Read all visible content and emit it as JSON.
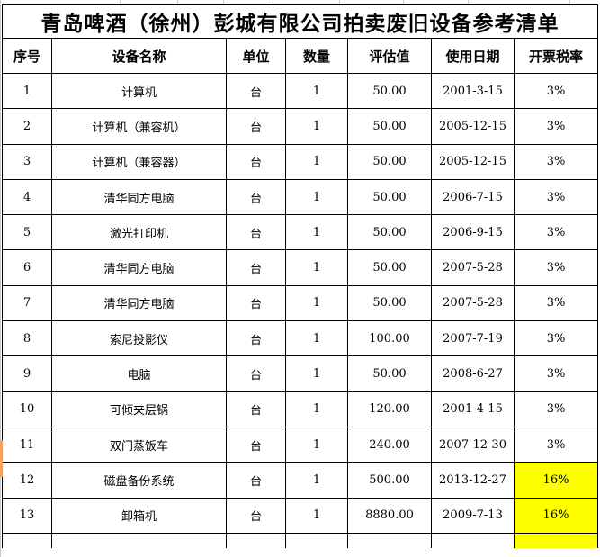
{
  "title": "青岛啤酒（徐州）彭城有限公司拍卖废旧设备参考清单",
  "table": {
    "columns": [
      "序号",
      "设备名称",
      "单位",
      "数量",
      "评估值",
      "使用日期",
      "开票税率"
    ],
    "rows": [
      {
        "no": "1",
        "name": "计算机",
        "unit": "台",
        "qty": "1",
        "value": "50.00",
        "date": "2001-3-15",
        "tax": "3%",
        "tax_highlight": false
      },
      {
        "no": "2",
        "name": "计算机（兼容机）",
        "unit": "台",
        "qty": "1",
        "value": "50.00",
        "date": "2005-12-15",
        "tax": "3%",
        "tax_highlight": false
      },
      {
        "no": "3",
        "name": "计算机（兼容器）",
        "unit": "台",
        "qty": "1",
        "value": "50.00",
        "date": "2005-12-15",
        "tax": "3%",
        "tax_highlight": false
      },
      {
        "no": "4",
        "name": "清华同方电脑",
        "unit": "台",
        "qty": "1",
        "value": "50.00",
        "date": "2006-7-15",
        "tax": "3%",
        "tax_highlight": false
      },
      {
        "no": "5",
        "name": "激光打印机",
        "unit": "台",
        "qty": "1",
        "value": "50.00",
        "date": "2006-9-15",
        "tax": "3%",
        "tax_highlight": false
      },
      {
        "no": "6",
        "name": "清华同方电脑",
        "unit": "台",
        "qty": "1",
        "value": "50.00",
        "date": "2007-5-28",
        "tax": "3%",
        "tax_highlight": false
      },
      {
        "no": "7",
        "name": "清华同方电脑",
        "unit": "台",
        "qty": "1",
        "value": "50.00",
        "date": "2007-5-28",
        "tax": "3%",
        "tax_highlight": false
      },
      {
        "no": "8",
        "name": "索尼投影仪",
        "unit": "台",
        "qty": "1",
        "value": "100.00",
        "date": "2007-7-19",
        "tax": "3%",
        "tax_highlight": false
      },
      {
        "no": "9",
        "name": "电脑",
        "unit": "台",
        "qty": "1",
        "value": "50.00",
        "date": "2008-6-27",
        "tax": "3%",
        "tax_highlight": false
      },
      {
        "no": "10",
        "name": "可倾夹层锅",
        "unit": "台",
        "qty": "1",
        "value": "120.00",
        "date": "2001-4-15",
        "tax": "3%",
        "tax_highlight": false
      },
      {
        "no": "11",
        "name": "双门蒸饭车",
        "unit": "台",
        "qty": "1",
        "value": "240.00",
        "date": "2007-12-30",
        "tax": "3%",
        "tax_highlight": false
      },
      {
        "no": "12",
        "name": "磁盘备份系统",
        "unit": "台",
        "qty": "1",
        "value": "500.00",
        "date": "2013-12-27",
        "tax": "16%",
        "tax_highlight": true
      },
      {
        "no": "13",
        "name": "卸箱机",
        "unit": "台",
        "qty": "1",
        "value": "8880.00",
        "date": "2009-7-13",
        "tax": "16%",
        "tax_highlight": true
      }
    ],
    "partial_next_row_tax_highlight": true
  },
  "colors": {
    "tax_highlight": "#FFFF00",
    "row_marker": "#F5A35A",
    "border": "#000000"
  }
}
